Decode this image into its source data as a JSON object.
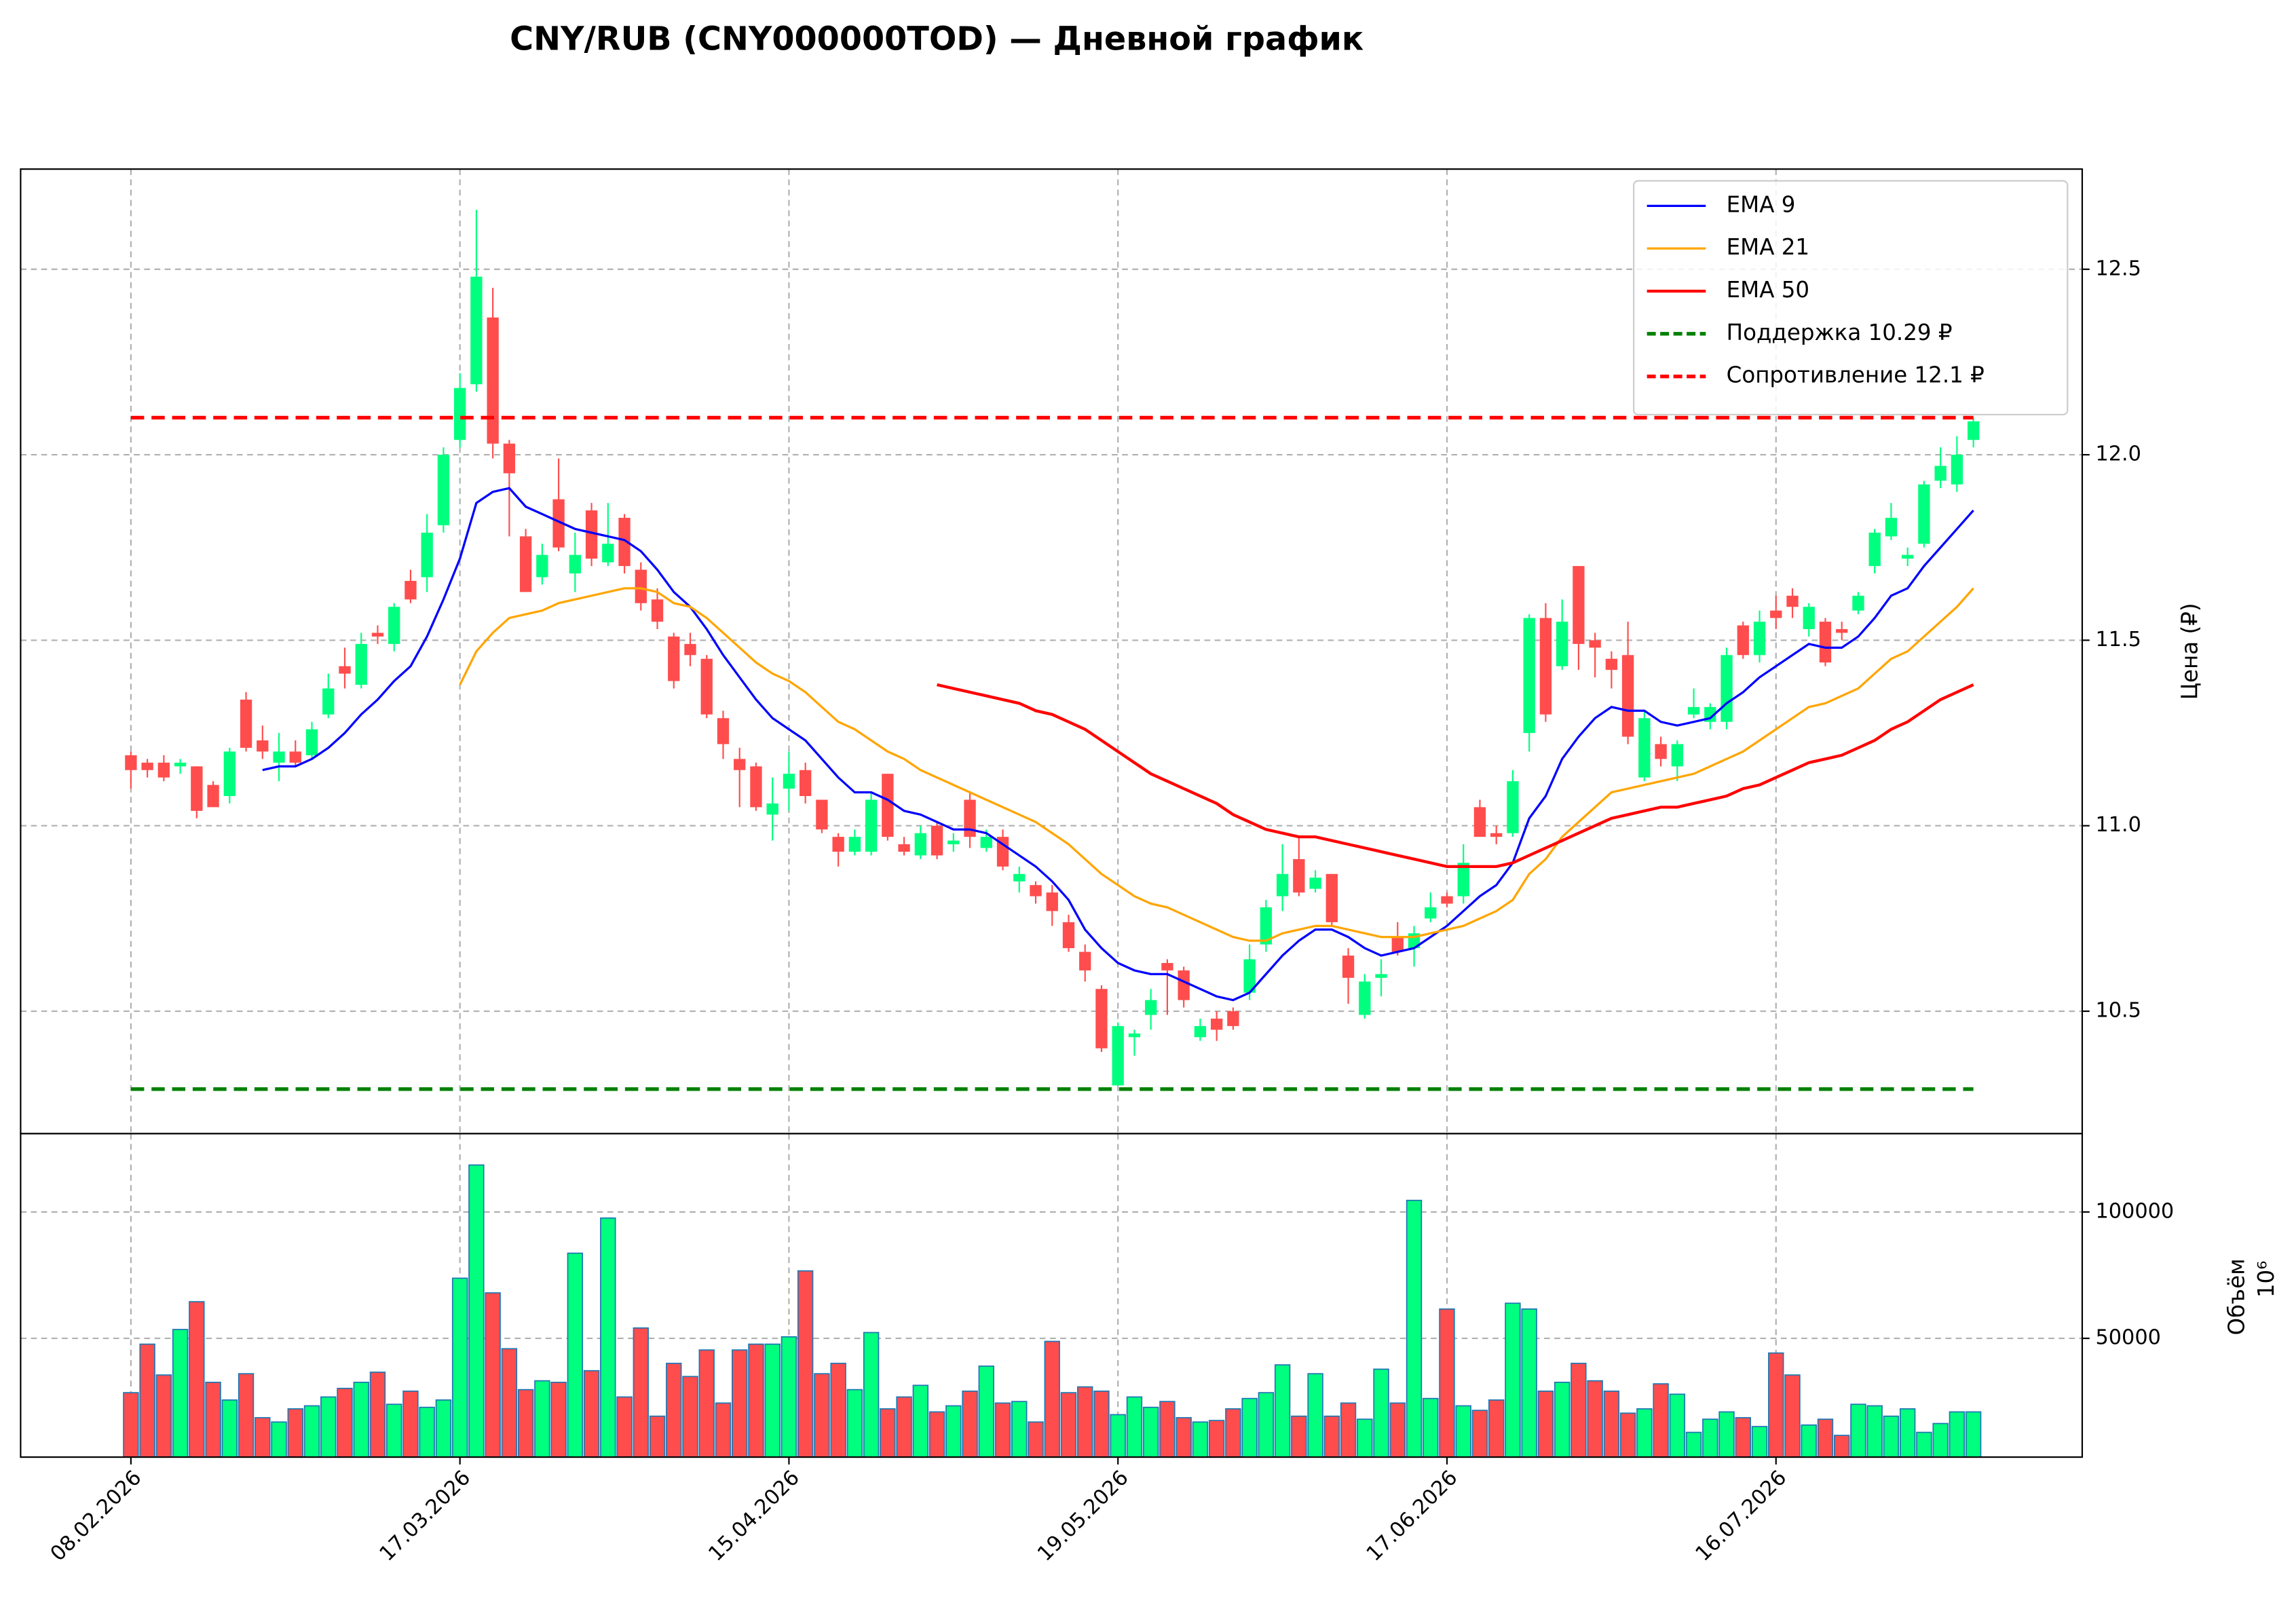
{
  "chart_data": {
    "type": "candlestick",
    "title": "CNY/RUB (CNY000000TOD) — Дневной график",
    "ylabel": "Цена (₽)",
    "grid": true,
    "legend": "upper right",
    "up_color": "#00ff7f",
    "down_color": "#ff4d4d",
    "categories": [
      "08.02.2026",
      null,
      null,
      null,
      null,
      null,
      null,
      null,
      null,
      null,
      null,
      null,
      null,
      null,
      null,
      null,
      null,
      null,
      null,
      null,
      "17.03.2026",
      null,
      null,
      null,
      null,
      null,
      null,
      null,
      null,
      null,
      null,
      null,
      null,
      null,
      null,
      null,
      null,
      null,
      null,
      null,
      "15.04.2026",
      null,
      null,
      null,
      null,
      null,
      null,
      null,
      null,
      null,
      null,
      null,
      null,
      null,
      null,
      null,
      null,
      null,
      null,
      null,
      "19.05.2026",
      null,
      null,
      null,
      null,
      null,
      null,
      null,
      null,
      null,
      null,
      null,
      null,
      null,
      null,
      null,
      null,
      null,
      null,
      null,
      "17.06.2026",
      null,
      null,
      null,
      null,
      null,
      null,
      null,
      null,
      null,
      null,
      null,
      null,
      null,
      null,
      null,
      null,
      null,
      null,
      null,
      "16.07.2026",
      null,
      null,
      null,
      null,
      null,
      null,
      null,
      null,
      null,
      null,
      null,
      null
    ],
    "open": [
      11.19,
      11.17,
      11.17,
      11.16,
      11.16,
      11.11,
      11.08,
      11.34,
      11.23,
      11.17,
      11.2,
      11.19,
      11.3,
      11.43,
      11.38,
      11.52,
      11.49,
      11.66,
      11.67,
      11.81,
      12.04,
      12.19,
      12.37,
      12.03,
      11.78,
      11.67,
      11.88,
      11.68,
      11.85,
      11.71,
      11.83,
      11.69,
      11.61,
      11.51,
      11.49,
      11.45,
      11.29,
      11.18,
      11.16,
      11.03,
      11.1,
      11.15,
      11.07,
      10.97,
      10.93,
      10.93,
      11.14,
      10.95,
      10.92,
      11.0,
      10.95,
      11.07,
      10.94,
      10.97,
      10.85,
      10.84,
      10.82,
      10.74,
      10.66,
      10.56,
      10.3,
      10.43,
      10.49,
      10.63,
      10.61,
      10.43,
      10.48,
      10.5,
      10.55,
      10.68,
      10.81,
      10.91,
      10.83,
      10.87,
      10.65,
      10.49,
      10.59,
      10.7,
      10.67,
      10.75,
      10.81,
      10.81,
      11.05,
      10.98,
      10.98,
      11.25,
      11.56,
      11.43,
      11.7,
      11.5,
      11.45,
      11.46,
      11.13,
      11.22,
      11.16,
      11.3,
      11.28,
      11.28,
      11.54,
      11.46,
      11.58,
      11.62,
      11.53,
      11.55,
      11.53,
      11.58,
      11.7,
      11.78,
      11.72,
      11.76,
      11.93,
      11.92,
      12.04
    ],
    "high": [
      11.2,
      11.18,
      11.19,
      11.18,
      11.16,
      11.12,
      11.21,
      11.36,
      11.27,
      11.25,
      11.23,
      11.28,
      11.41,
      11.48,
      11.52,
      11.54,
      11.6,
      11.69,
      11.84,
      12.02,
      12.22,
      12.66,
      12.45,
      12.04,
      11.8,
      11.76,
      11.99,
      11.79,
      11.87,
      11.87,
      11.84,
      11.71,
      11.64,
      11.52,
      11.52,
      11.46,
      11.31,
      11.21,
      11.17,
      11.13,
      11.2,
      11.17,
      11.07,
      10.98,
      10.99,
      11.09,
      11.14,
      10.97,
      11.0,
      11.01,
      10.98,
      11.09,
      10.99,
      10.99,
      10.89,
      10.85,
      10.84,
      10.76,
      10.68,
      10.57,
      10.47,
      10.45,
      10.56,
      10.64,
      10.62,
      10.48,
      10.5,
      10.51,
      10.68,
      10.8,
      10.95,
      10.97,
      10.88,
      10.87,
      10.67,
      10.6,
      10.64,
      10.74,
      10.73,
      10.82,
      10.82,
      10.95,
      11.07,
      11.0,
      11.15,
      11.57,
      11.6,
      11.61,
      11.7,
      11.52,
      11.47,
      11.55,
      11.31,
      11.24,
      11.23,
      11.37,
      11.33,
      11.48,
      11.55,
      11.58,
      11.62,
      11.64,
      11.6,
      11.56,
      11.55,
      11.63,
      11.8,
      11.87,
      11.75,
      11.93,
      12.02,
      12.05,
      12.1
    ],
    "low": [
      11.1,
      11.13,
      11.12,
      11.14,
      11.02,
      11.05,
      11.06,
      11.2,
      11.18,
      11.12,
      11.16,
      11.18,
      11.29,
      11.37,
      11.37,
      11.49,
      11.47,
      11.6,
      11.63,
      11.79,
      12.02,
      12.17,
      11.99,
      11.78,
      11.63,
      11.65,
      11.74,
      11.63,
      11.7,
      11.7,
      11.68,
      11.58,
      11.53,
      11.37,
      11.43,
      11.29,
      11.18,
      11.05,
      11.04,
      10.96,
      11.04,
      11.06,
      10.98,
      10.89,
      10.92,
      10.92,
      10.96,
      10.92,
      10.91,
      10.91,
      10.93,
      10.94,
      10.93,
      10.88,
      10.82,
      10.79,
      10.73,
      10.66,
      10.58,
      10.39,
      10.3,
      10.38,
      10.45,
      10.49,
      10.51,
      10.42,
      10.42,
      10.45,
      10.53,
      10.66,
      10.77,
      10.81,
      10.82,
      10.73,
      10.52,
      10.48,
      10.54,
      10.65,
      10.62,
      10.74,
      10.78,
      10.79,
      10.97,
      10.95,
      10.97,
      11.2,
      11.28,
      11.42,
      11.42,
      11.4,
      11.37,
      11.22,
      11.12,
      11.16,
      11.12,
      11.29,
      11.26,
      11.26,
      11.45,
      11.44,
      11.53,
      11.56,
      11.51,
      11.43,
      11.5,
      11.57,
      11.68,
      11.77,
      11.7,
      11.75,
      11.91,
      11.9,
      12.02
    ],
    "close": [
      11.15,
      11.15,
      11.13,
      11.17,
      11.04,
      11.05,
      11.2,
      11.21,
      11.2,
      11.2,
      11.17,
      11.26,
      11.37,
      11.41,
      11.49,
      11.51,
      11.59,
      11.61,
      11.79,
      12.0,
      12.18,
      12.48,
      12.03,
      11.95,
      11.63,
      11.73,
      11.75,
      11.73,
      11.72,
      11.76,
      11.7,
      11.6,
      11.55,
      11.39,
      11.46,
      11.3,
      11.22,
      11.15,
      11.05,
      11.06,
      11.14,
      11.08,
      10.99,
      10.93,
      10.97,
      11.07,
      10.97,
      10.93,
      10.98,
      10.92,
      10.96,
      10.97,
      10.97,
      10.89,
      10.87,
      10.81,
      10.77,
      10.67,
      10.61,
      10.4,
      10.46,
      10.44,
      10.53,
      10.61,
      10.53,
      10.46,
      10.45,
      10.46,
      10.64,
      10.78,
      10.87,
      10.82,
      10.86,
      10.74,
      10.59,
      10.58,
      10.6,
      10.66,
      10.71,
      10.78,
      10.79,
      10.9,
      10.97,
      10.97,
      11.12,
      11.56,
      11.3,
      11.55,
      11.49,
      11.48,
      11.42,
      11.24,
      11.29,
      11.18,
      11.22,
      11.32,
      11.32,
      11.46,
      11.46,
      11.55,
      11.56,
      11.59,
      11.59,
      11.44,
      11.52,
      11.62,
      11.79,
      11.83,
      11.73,
      11.92,
      11.97,
      12.0,
      12.09
    ],
    "ylim": [
      10.17,
      12.77
    ],
    "yticks": [
      10.5,
      {
        "value": 11,
        "label": "11.0"
      },
      11.5,
      {
        "value": 12,
        "label": "12.0"
      },
      12.5
    ],
    "series": [
      {
        "name": "EMA 9",
        "color": "#0000ff",
        "values": [
          null,
          null,
          null,
          null,
          null,
          null,
          null,
          null,
          11.15,
          11.16,
          11.16,
          11.18,
          11.21,
          11.25,
          11.3,
          11.34,
          11.39,
          11.43,
          11.51,
          11.61,
          11.72,
          11.87,
          11.9,
          11.91,
          11.86,
          11.84,
          11.82,
          11.8,
          11.79,
          11.78,
          11.77,
          11.74,
          11.69,
          11.63,
          11.59,
          11.53,
          11.46,
          11.4,
          11.34,
          11.29,
          11.26,
          11.23,
          11.18,
          11.13,
          11.09,
          11.09,
          11.07,
          11.04,
          11.03,
          11.01,
          10.99,
          10.99,
          10.98,
          10.95,
          10.92,
          10.89,
          10.85,
          10.8,
          10.72,
          10.67,
          10.63,
          10.61,
          10.6,
          10.6,
          10.58,
          10.56,
          10.54,
          10.53,
          10.55,
          10.6,
          10.65,
          10.69,
          10.72,
          10.72,
          10.7,
          10.67,
          10.65,
          10.66,
          10.67,
          10.7,
          10.73,
          10.77,
          10.81,
          10.84,
          10.9,
          11.02,
          11.08,
          11.18,
          11.24,
          11.29,
          11.32,
          11.31,
          11.31,
          11.28,
          11.27,
          11.28,
          11.29,
          11.33,
          11.36,
          11.4,
          11.43,
          11.46,
          11.49,
          11.48,
          11.48,
          11.51,
          11.56,
          11.62,
          11.64,
          11.7,
          11.75,
          11.8,
          11.85
        ]
      },
      {
        "name": "EMA 21",
        "color": "#ffa500",
        "values": [
          null,
          null,
          null,
          null,
          null,
          null,
          null,
          null,
          null,
          null,
          null,
          null,
          null,
          null,
          null,
          null,
          null,
          null,
          null,
          null,
          11.38,
          11.47,
          11.52,
          11.56,
          11.57,
          11.58,
          11.6,
          11.61,
          11.62,
          11.63,
          11.64,
          11.64,
          11.63,
          11.6,
          11.59,
          11.56,
          11.52,
          11.48,
          11.44,
          11.41,
          11.39,
          11.36,
          11.32,
          11.28,
          11.26,
          11.23,
          11.2,
          11.18,
          11.15,
          11.13,
          11.11,
          11.09,
          11.07,
          11.05,
          11.03,
          11.01,
          10.98,
          10.95,
          10.91,
          10.87,
          10.84,
          10.81,
          10.79,
          10.78,
          10.76,
          10.74,
          10.72,
          10.7,
          10.69,
          10.69,
          10.71,
          10.72,
          10.73,
          10.73,
          10.72,
          10.71,
          10.7,
          10.7,
          10.7,
          10.71,
          10.72,
          10.73,
          10.75,
          10.77,
          10.8,
          10.87,
          10.91,
          10.97,
          11.01,
          11.05,
          11.09,
          11.1,
          11.11,
          11.12,
          11.13,
          11.14,
          11.16,
          11.18,
          11.2,
          11.23,
          11.26,
          11.29,
          11.32,
          11.33,
          11.35,
          11.37,
          11.41,
          11.45,
          11.47,
          11.51,
          11.55,
          11.59,
          11.64
        ]
      },
      {
        "name": "EMA 50",
        "color": "#ff0000",
        "values": [
          null,
          null,
          null,
          null,
          null,
          null,
          null,
          null,
          null,
          null,
          null,
          null,
          null,
          null,
          null,
          null,
          null,
          null,
          null,
          null,
          null,
          null,
          null,
          null,
          null,
          null,
          null,
          null,
          null,
          null,
          null,
          null,
          null,
          null,
          null,
          null,
          null,
          null,
          null,
          null,
          null,
          null,
          null,
          null,
          null,
          null,
          null,
          null,
          null,
          11.38,
          11.37,
          11.36,
          11.35,
          11.34,
          11.33,
          11.31,
          11.3,
          11.28,
          11.26,
          11.23,
          11.2,
          11.17,
          11.14,
          11.12,
          11.1,
          11.08,
          11.06,
          11.03,
          11.01,
          10.99,
          10.98,
          10.97,
          10.97,
          10.96,
          10.95,
          10.94,
          10.93,
          10.92,
          10.91,
          10.9,
          10.89,
          10.89,
          10.89,
          10.89,
          10.9,
          10.92,
          10.94,
          10.96,
          10.98,
          11.0,
          11.02,
          11.03,
          11.04,
          11.05,
          11.05,
          11.06,
          11.07,
          11.08,
          11.1,
          11.11,
          11.13,
          11.15,
          11.17,
          11.18,
          11.19,
          11.21,
          11.23,
          11.26,
          11.28,
          11.31,
          11.34,
          11.36,
          11.38
        ]
      }
    ],
    "levels": [
      {
        "name": "Поддержка 10.29 ₽",
        "value": 10.29,
        "color": "#008000"
      },
      {
        "name": "Сопротивление 12.1 ₽",
        "value": 12.1,
        "color": "#ff0000"
      }
    ],
    "volume": {
      "ylabel": "Объём",
      "offset_label": "10⁶",
      "edge_color": "#1f77b4",
      "ylim": [
        3000,
        131000
      ],
      "yticks": [
        50000,
        100000
      ],
      "values": [
        28500,
        47700,
        35500,
        53500,
        64500,
        32600,
        25600,
        36000,
        18600,
        16900,
        22100,
        23300,
        26800,
        30200,
        32600,
        36600,
        23900,
        29100,
        22700,
        25600,
        73800,
        118600,
        68000,
        45900,
        29700,
        33200,
        32600,
        83700,
        37200,
        97600,
        26800,
        54100,
        19200,
        40100,
        34900,
        45400,
        24400,
        45400,
        47700,
        47700,
        50600,
        76700,
        36000,
        40100,
        29700,
        52300,
        22100,
        26800,
        31400,
        20900,
        23300,
        29100,
        39000,
        24400,
        25000,
        16900,
        48800,
        28500,
        30800,
        29100,
        19800,
        26800,
        22700,
        25000,
        18600,
        16900,
        17500,
        22100,
        26200,
        28500,
        39500,
        19200,
        36000,
        19200,
        24400,
        18000,
        37800,
        24400,
        104600,
        26200,
        61600,
        23300,
        21500,
        25600,
        63900,
        61600,
        29100,
        32600,
        40100,
        33200,
        29100,
        20400,
        22100,
        32000,
        27900,
        12800,
        18000,
        20900,
        18600,
        15100,
        44200,
        35500,
        15700,
        18000,
        11600,
        23900,
        23300,
        19200,
        22100,
        12800,
        16300,
        20900,
        20900
      ]
    }
  }
}
